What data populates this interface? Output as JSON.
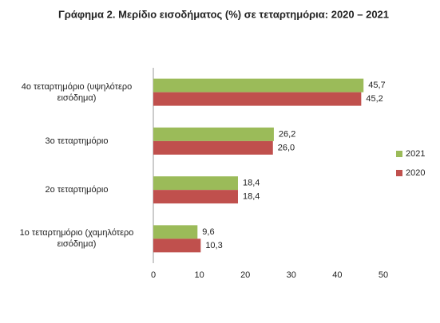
{
  "chart_data": {
    "type": "bar",
    "orientation": "horizontal",
    "title": "Γράφημα 2. Μερίδιο εισοδήματος (%) σε τεταρτημόρια: 2020 – 2021",
    "categories": [
      "4ο τεταρτημόριο  (υψηλότερο εισόδημα)",
      "3ο τεταρτημόριο",
      "2ο τεταρτημόριο",
      "1ο τεταρτημόριο (χαμηλότερο εισόδημα)"
    ],
    "series": [
      {
        "name": "2021",
        "color": "#9bbb59",
        "values": [
          45.7,
          26.2,
          18.4,
          9.6
        ],
        "value_labels": [
          "45,7",
          "26,2",
          "18,4",
          "9,6"
        ]
      },
      {
        "name": "2020",
        "color": "#c0504d",
        "values": [
          45.2,
          26.0,
          18.4,
          10.3
        ],
        "value_labels": [
          "45,2",
          "26,0",
          "18,4",
          "10,3"
        ]
      }
    ],
    "xlim": [
      0,
      50
    ],
    "xticks": [
      0,
      10,
      20,
      30,
      40,
      50
    ],
    "grid": false,
    "legend": "right"
  }
}
